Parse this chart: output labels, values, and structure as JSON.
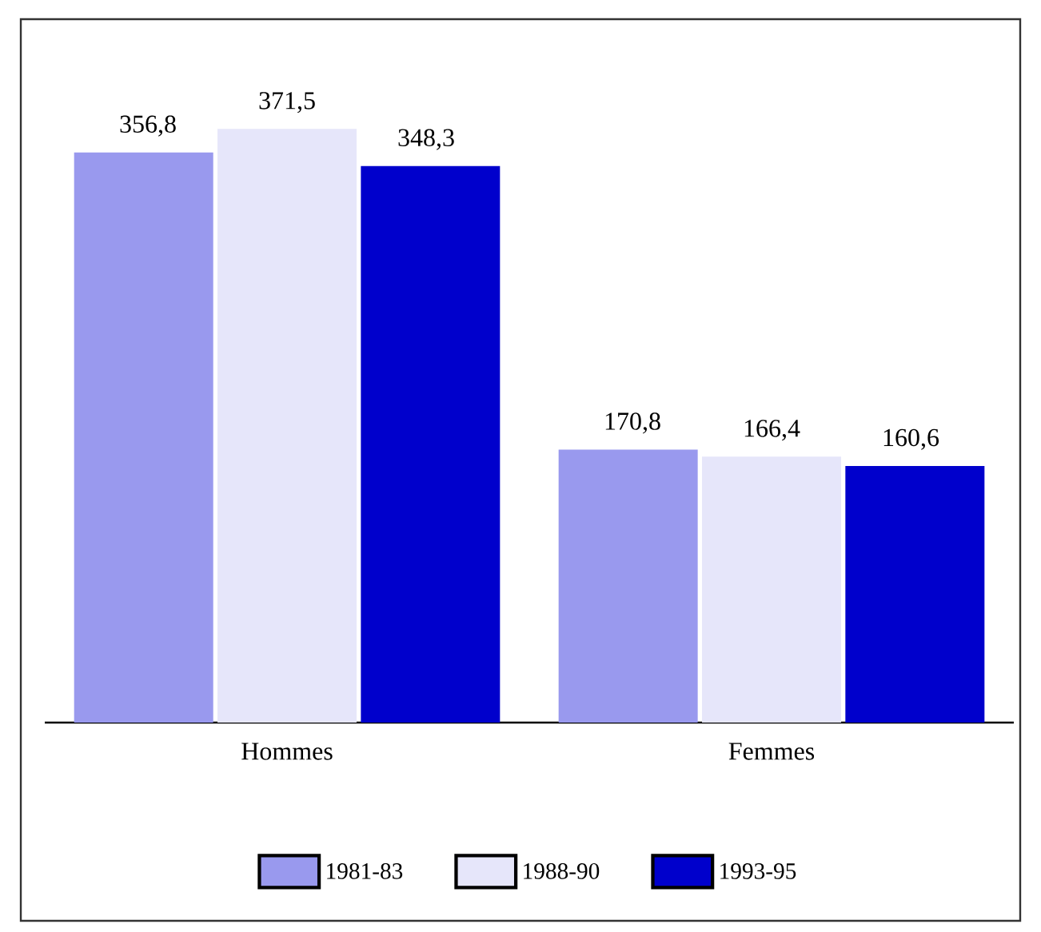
{
  "chart_data": {
    "type": "bar",
    "categories": [
      "Hommes",
      "Femmes"
    ],
    "series": [
      {
        "name": "1981-83",
        "color": "#9999ee",
        "values": [
          356.8,
          170.8
        ],
        "value_labels": [
          "356,8",
          "170,8"
        ]
      },
      {
        "name": "1988-90",
        "color": "#e6e6fa",
        "values": [
          371.5,
          166.4
        ],
        "value_labels": [
          "371,5",
          "166,4"
        ]
      },
      {
        "name": "1993-95",
        "color": "#0000cc",
        "values": [
          348.3,
          160.6
        ],
        "value_labels": [
          "348,3",
          "160,6"
        ]
      }
    ],
    "legend": "bottom"
  }
}
